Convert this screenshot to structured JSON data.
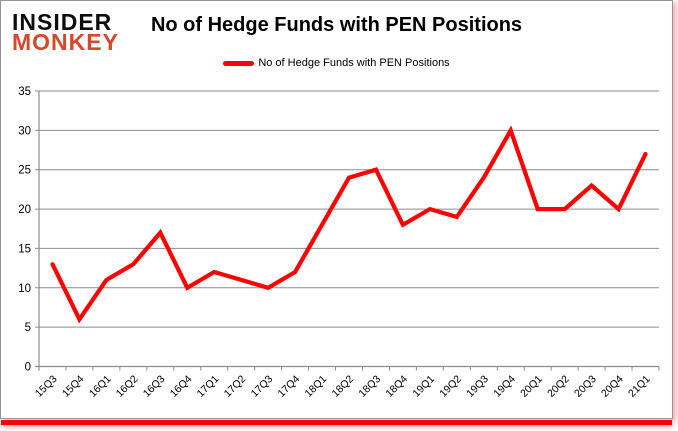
{
  "logo": {
    "line1": "INSIDER",
    "line2": "MONKEY"
  },
  "header": {
    "title": "No of Hedge Funds with PEN Positions"
  },
  "legend": {
    "label": "No of Hedge Funds with PEN Positions"
  },
  "colors": {
    "series_red": "#ff0000",
    "logo_red": "#d9472b",
    "grid_gray": "#8c8c8c",
    "axis_gray": "#8c8c8c",
    "label_black": "#000000",
    "border_gray": "#949494",
    "bottom_rule_red": "#ff0000"
  },
  "chart_data": {
    "type": "line",
    "title": "No of Hedge Funds with PEN Positions",
    "categories": [
      "15Q3",
      "15Q4",
      "16Q1",
      "16Q2",
      "16Q3",
      "16Q4",
      "17Q1",
      "17Q2",
      "17Q3",
      "17Q4",
      "18Q1",
      "18Q2",
      "18Q3",
      "18Q4",
      "19Q1",
      "19Q2",
      "19Q3",
      "19Q4",
      "20Q1",
      "20Q2",
      "20Q3",
      "20Q4",
      "21Q1"
    ],
    "series": [
      {
        "name": "No of Hedge Funds with PEN Positions",
        "color": "#ff0000",
        "values": [
          13,
          6,
          11,
          13,
          17,
          10,
          12,
          11,
          10,
          12,
          18,
          24,
          25,
          18,
          20,
          19,
          24,
          30,
          20,
          20,
          23,
          20,
          27
        ]
      }
    ],
    "xlabel": "",
    "ylabel": "",
    "ylim": [
      0,
      35
    ],
    "ytick_step": 5,
    "grid": true,
    "legend_position": "top-center"
  }
}
